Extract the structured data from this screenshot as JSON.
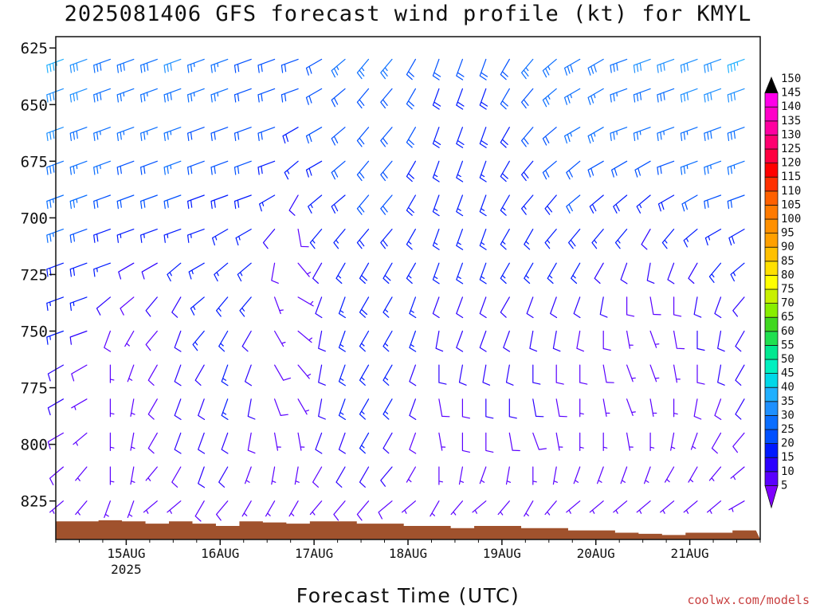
{
  "title": "2025081406 GFS forecast wind profile (kt) for KMYL",
  "xlabel": "Forecast Time (UTC)",
  "credit": "coolwx.com/models",
  "chart_data": {
    "type": "wind_barb_profile",
    "title": "2025081406 GFS forecast wind profile (kt) for KMYL",
    "xlabel": "Forecast Time (UTC)",
    "ylabel": "",
    "units": "kt",
    "y_axis": {
      "ticks": [
        625,
        650,
        675,
        700,
        725,
        750,
        775,
        800,
        825
      ],
      "range": [
        620,
        842
      ],
      "inverted": true
    },
    "x_axis": {
      "ticks": [
        "15AUG",
        "16AUG",
        "17AUG",
        "18AUG",
        "19AUG",
        "20AUG",
        "21AUG"
      ],
      "year_label": "2025",
      "range_days": [
        14.25,
        21.75
      ]
    },
    "colorbar": {
      "levels": [
        5,
        10,
        15,
        20,
        25,
        30,
        35,
        40,
        45,
        50,
        55,
        60,
        65,
        70,
        75,
        80,
        85,
        90,
        95,
        100,
        105,
        110,
        115,
        120,
        125,
        130,
        135,
        140,
        145,
        150
      ],
      "colors": [
        "#7f00ff",
        "#5a00ff",
        "#2b00ff",
        "#0019ff",
        "#0050ff",
        "#0a6eff",
        "#1e90ff",
        "#20b0ff",
        "#00d8e8",
        "#00f0c0",
        "#00e890",
        "#20e050",
        "#40d820",
        "#88ee00",
        "#c8f000",
        "#ffff00",
        "#ffe000",
        "#ffc000",
        "#ffa000",
        "#ff9000",
        "#ff7a00",
        "#ff6000",
        "#ff3000",
        "#ff0000",
        "#ff0040",
        "#ff0070",
        "#ff00a0",
        "#ff00c8",
        "#ff00e8",
        "#000000"
      ]
    },
    "levels_hPa": [
      630,
      643,
      660,
      675,
      690,
      705,
      720,
      735,
      750,
      765,
      780,
      795,
      810,
      825
    ],
    "times_days": [
      14.33,
      14.58,
      14.83,
      15.08,
      15.33,
      15.58,
      15.83,
      16.08,
      16.33,
      16.58,
      16.83,
      17.08,
      17.33,
      17.58,
      17.83,
      18.08,
      18.33,
      18.58,
      18.83,
      19.08,
      19.33,
      19.58,
      19.83,
      20.08,
      20.33,
      20.58,
      20.83,
      21.08,
      21.33,
      21.58
    ],
    "surface_pressure_hPa": [
      834,
      834,
      833.5,
      834,
      835,
      834,
      835,
      836,
      834,
      834.5,
      835,
      834,
      834,
      835,
      835,
      836,
      836,
      837,
      836,
      836,
      837,
      837,
      838,
      838,
      839,
      839.5,
      840,
      839,
      839,
      838
    ],
    "wind_speed_kt": [
      [
        36,
        34,
        32,
        30,
        28,
        26,
        20,
        18,
        16,
        14,
        12,
        10,
        10,
        8
      ],
      [
        34,
        32,
        30,
        28,
        26,
        24,
        20,
        16,
        12,
        10,
        8,
        8,
        8,
        6
      ],
      [
        30,
        30,
        28,
        26,
        24,
        20,
        18,
        14,
        10,
        8,
        6,
        6,
        6,
        6
      ],
      [
        30,
        28,
        26,
        24,
        22,
        18,
        14,
        10,
        8,
        8,
        8,
        8,
        8,
        6
      ],
      [
        30,
        28,
        26,
        24,
        22,
        18,
        14,
        12,
        10,
        10,
        10,
        10,
        8,
        8
      ],
      [
        32,
        30,
        28,
        26,
        22,
        18,
        16,
        14,
        14,
        12,
        12,
        12,
        10,
        8
      ],
      [
        28,
        26,
        24,
        22,
        20,
        18,
        16,
        16,
        16,
        14,
        14,
        14,
        12,
        10
      ],
      [
        26,
        26,
        24,
        22,
        20,
        18,
        18,
        18,
        16,
        16,
        16,
        14,
        12,
        10
      ],
      [
        24,
        24,
        22,
        22,
        20,
        18,
        16,
        16,
        14,
        14,
        12,
        10,
        8,
        6
      ],
      [
        22,
        22,
        22,
        20,
        18,
        14,
        10,
        8,
        8,
        10,
        10,
        8,
        8,
        6
      ],
      [
        22,
        22,
        20,
        18,
        14,
        10,
        8,
        6,
        6,
        8,
        8,
        8,
        6,
        6
      ],
      [
        24,
        24,
        22,
        20,
        18,
        16,
        14,
        14,
        14,
        14,
        12,
        12,
        10,
        8
      ],
      [
        26,
        24,
        22,
        22,
        20,
        18,
        18,
        18,
        18,
        16,
        16,
        14,
        12,
        10
      ],
      [
        26,
        24,
        24,
        22,
        22,
        20,
        20,
        20,
        18,
        18,
        16,
        16,
        14,
        10
      ],
      [
        26,
        24,
        24,
        22,
        22,
        20,
        20,
        18,
        18,
        16,
        16,
        14,
        12,
        10
      ],
      [
        24,
        22,
        22,
        20,
        20,
        18,
        18,
        16,
        16,
        14,
        12,
        10,
        8,
        6
      ],
      [
        22,
        20,
        20,
        18,
        18,
        16,
        16,
        14,
        14,
        12,
        10,
        8,
        6,
        6
      ],
      [
        22,
        20,
        20,
        18,
        18,
        16,
        16,
        14,
        14,
        12,
        10,
        10,
        8,
        6
      ],
      [
        22,
        20,
        20,
        18,
        18,
        16,
        16,
        14,
        14,
        12,
        12,
        10,
        8,
        6
      ],
      [
        24,
        22,
        20,
        20,
        18,
        16,
        16,
        14,
        14,
        12,
        12,
        10,
        8,
        6
      ],
      [
        26,
        24,
        22,
        20,
        18,
        16,
        16,
        14,
        14,
        12,
        12,
        10,
        8,
        8
      ],
      [
        28,
        26,
        24,
        22,
        20,
        18,
        16,
        14,
        12,
        10,
        10,
        8,
        8,
        8
      ],
      [
        30,
        28,
        26,
        24,
        22,
        20,
        16,
        12,
        10,
        10,
        8,
        8,
        8,
        6
      ],
      [
        30,
        28,
        26,
        24,
        20,
        18,
        14,
        12,
        10,
        10,
        8,
        8,
        6,
        6
      ],
      [
        30,
        28,
        26,
        22,
        20,
        16,
        12,
        10,
        8,
        8,
        8,
        8,
        6,
        6
      ],
      [
        32,
        30,
        26,
        22,
        18,
        14,
        12,
        10,
        8,
        8,
        6,
        6,
        6,
        6
      ],
      [
        32,
        30,
        28,
        24,
        20,
        16,
        12,
        10,
        10,
        8,
        8,
        6,
        6,
        6
      ],
      [
        34,
        32,
        28,
        26,
        22,
        18,
        14,
        12,
        12,
        10,
        10,
        8,
        8,
        6
      ],
      [
        34,
        32,
        30,
        26,
        22,
        18,
        16,
        14,
        12,
        12,
        10,
        10,
        8,
        8
      ],
      [
        36,
        34,
        30,
        28,
        24,
        20,
        16,
        14,
        14,
        12,
        12,
        10,
        8,
        8
      ]
    ],
    "wind_dir_deg": [
      [
        250,
        250,
        250,
        250,
        250,
        250,
        250,
        250,
        250,
        240,
        240,
        240,
        230,
        230
      ],
      [
        250,
        250,
        250,
        250,
        250,
        250,
        250,
        250,
        250,
        240,
        240,
        230,
        220,
        220
      ],
      [
        250,
        250,
        250,
        250,
        250,
        250,
        250,
        230,
        200,
        180,
        180,
        180,
        180,
        200
      ],
      [
        250,
        250,
        250,
        250,
        250,
        250,
        240,
        230,
        210,
        200,
        190,
        190,
        190,
        200
      ],
      [
        250,
        250,
        250,
        250,
        250,
        250,
        240,
        220,
        220,
        210,
        210,
        210,
        220,
        230
      ],
      [
        250,
        250,
        250,
        250,
        250,
        250,
        230,
        210,
        200,
        200,
        200,
        200,
        210,
        230
      ],
      [
        250,
        250,
        250,
        250,
        250,
        250,
        240,
        230,
        220,
        210,
        200,
        200,
        200,
        210
      ],
      [
        250,
        250,
        250,
        250,
        250,
        240,
        230,
        220,
        210,
        200,
        200,
        200,
        210,
        220
      ],
      [
        250,
        250,
        250,
        250,
        250,
        240,
        230,
        220,
        210,
        200,
        190,
        190,
        200,
        210
      ],
      [
        250,
        250,
        250,
        250,
        240,
        220,
        190,
        160,
        150,
        150,
        160,
        170,
        190,
        210
      ],
      [
        250,
        250,
        240,
        230,
        210,
        170,
        140,
        120,
        130,
        140,
        150,
        170,
        190,
        210
      ],
      [
        240,
        240,
        240,
        240,
        230,
        220,
        210,
        200,
        190,
        190,
        190,
        200,
        210,
        220
      ],
      [
        230,
        230,
        230,
        230,
        230,
        220,
        210,
        200,
        200,
        200,
        200,
        200,
        210,
        220
      ],
      [
        220,
        220,
        220,
        220,
        220,
        220,
        210,
        210,
        210,
        210,
        210,
        210,
        210,
        220
      ],
      [
        220,
        220,
        220,
        220,
        220,
        220,
        210,
        210,
        210,
        210,
        210,
        210,
        220,
        230
      ],
      [
        210,
        210,
        210,
        210,
        210,
        210,
        210,
        200,
        200,
        200,
        200,
        200,
        210,
        230
      ],
      [
        200,
        200,
        200,
        200,
        200,
        200,
        200,
        200,
        190,
        180,
        170,
        170,
        180,
        210
      ],
      [
        200,
        200,
        200,
        200,
        200,
        200,
        200,
        200,
        200,
        190,
        180,
        180,
        190,
        220
      ],
      [
        200,
        200,
        200,
        200,
        200,
        200,
        200,
        200,
        200,
        190,
        180,
        180,
        200,
        230
      ],
      [
        210,
        210,
        210,
        210,
        210,
        210,
        210,
        210,
        200,
        190,
        180,
        170,
        190,
        220
      ],
      [
        220,
        220,
        220,
        220,
        220,
        210,
        210,
        200,
        190,
        180,
        170,
        160,
        180,
        210
      ],
      [
        230,
        230,
        230,
        230,
        220,
        220,
        210,
        200,
        190,
        180,
        170,
        170,
        190,
        220
      ],
      [
        240,
        240,
        240,
        230,
        230,
        220,
        210,
        200,
        190,
        180,
        180,
        180,
        200,
        230
      ],
      [
        240,
        240,
        240,
        240,
        230,
        220,
        210,
        190,
        180,
        170,
        170,
        180,
        200,
        230
      ],
      [
        250,
        250,
        250,
        240,
        230,
        220,
        200,
        180,
        170,
        160,
        160,
        170,
        200,
        230
      ],
      [
        250,
        250,
        250,
        240,
        230,
        210,
        190,
        170,
        160,
        160,
        170,
        180,
        200,
        230
      ],
      [
        250,
        250,
        250,
        250,
        240,
        220,
        200,
        180,
        170,
        170,
        180,
        190,
        210,
        230
      ],
      [
        250,
        250,
        250,
        250,
        240,
        230,
        210,
        190,
        180,
        180,
        190,
        200,
        210,
        230
      ],
      [
        250,
        250,
        250,
        250,
        250,
        240,
        220,
        200,
        190,
        190,
        200,
        210,
        220,
        230
      ],
      [
        250,
        250,
        250,
        250,
        250,
        240,
        230,
        220,
        210,
        210,
        210,
        220,
        230,
        240
      ]
    ],
    "grid": false,
    "legend": "right colorbar"
  }
}
